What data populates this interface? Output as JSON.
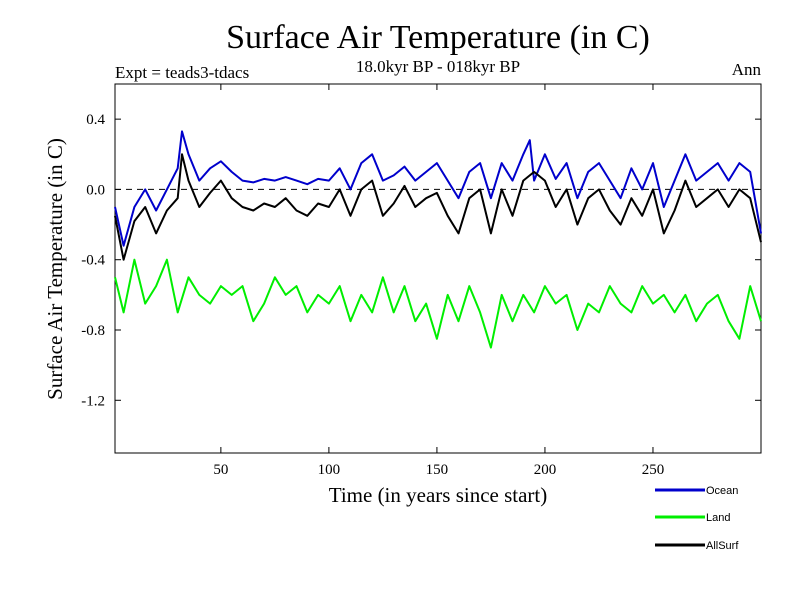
{
  "chart_data": {
    "type": "line",
    "title": "Surface Air Temperature (in C)",
    "subtitle": "18.0kyr BP - 018kyr BP",
    "experiment_label": "Expt = teads3-tdacs",
    "season_label": "Ann",
    "xlabel": "Time (in years since start)",
    "ylabel": "Surface Air Temperature (in C)",
    "xlim": [
      1,
      300
    ],
    "ylim": [
      -1.5,
      0.6
    ],
    "xticks": [
      50,
      100,
      150,
      200,
      250
    ],
    "xtick_labels": [
      "50",
      "100",
      "150",
      "200",
      "250"
    ],
    "yticks": [
      0.4,
      0.0,
      -0.4,
      -0.8,
      -1.2
    ],
    "ytick_labels": [
      "0.4",
      "0.0",
      "-0.4",
      "-0.8",
      "-1.2"
    ],
    "reference_line": 0.0,
    "series": [
      {
        "name": "Ocean",
        "color": "#0000cc",
        "x": [
          1,
          5,
          10,
          15,
          20,
          25,
          30,
          32,
          35,
          40,
          45,
          50,
          55,
          60,
          65,
          70,
          75,
          80,
          85,
          90,
          95,
          100,
          105,
          110,
          115,
          120,
          125,
          130,
          135,
          140,
          145,
          150,
          155,
          160,
          165,
          170,
          175,
          180,
          185,
          190,
          193,
          195,
          200,
          205,
          210,
          215,
          220,
          225,
          230,
          235,
          240,
          245,
          250,
          255,
          260,
          265,
          270,
          275,
          280,
          285,
          290,
          295,
          300
        ],
        "values": [
          -0.1,
          -0.32,
          -0.1,
          0.0,
          -0.12,
          0.0,
          0.12,
          0.33,
          0.2,
          0.05,
          0.12,
          0.16,
          0.1,
          0.05,
          0.04,
          0.06,
          0.05,
          0.07,
          0.05,
          0.03,
          0.06,
          0.05,
          0.12,
          0.0,
          0.15,
          0.2,
          0.05,
          0.08,
          0.13,
          0.05,
          0.1,
          0.15,
          0.05,
          -0.05,
          0.1,
          0.15,
          -0.05,
          0.15,
          0.05,
          0.2,
          0.28,
          0.05,
          0.2,
          0.06,
          0.15,
          -0.05,
          0.1,
          0.15,
          0.05,
          -0.05,
          0.12,
          0.0,
          0.15,
          -0.1,
          0.05,
          0.2,
          0.05,
          0.1,
          0.15,
          0.05,
          0.15,
          0.1,
          -0.25
        ]
      },
      {
        "name": "Land",
        "color": "#00ee00",
        "x": [
          1,
          5,
          10,
          15,
          20,
          25,
          30,
          35,
          40,
          45,
          50,
          55,
          60,
          65,
          70,
          75,
          80,
          85,
          90,
          95,
          100,
          105,
          110,
          115,
          120,
          125,
          130,
          135,
          140,
          145,
          150,
          155,
          160,
          165,
          170,
          175,
          180,
          185,
          190,
          195,
          200,
          205,
          210,
          215,
          220,
          225,
          230,
          235,
          240,
          245,
          250,
          255,
          260,
          265,
          270,
          275,
          280,
          285,
          290,
          295,
          300
        ],
        "values": [
          -0.5,
          -0.7,
          -0.4,
          -0.65,
          -0.55,
          -0.4,
          -0.7,
          -0.5,
          -0.6,
          -0.65,
          -0.55,
          -0.6,
          -0.55,
          -0.75,
          -0.65,
          -0.5,
          -0.6,
          -0.55,
          -0.7,
          -0.6,
          -0.65,
          -0.55,
          -0.75,
          -0.6,
          -0.7,
          -0.5,
          -0.7,
          -0.55,
          -0.75,
          -0.65,
          -0.85,
          -0.6,
          -0.75,
          -0.55,
          -0.7,
          -0.9,
          -0.6,
          -0.75,
          -0.6,
          -0.7,
          -0.55,
          -0.65,
          -0.6,
          -0.8,
          -0.65,
          -0.7,
          -0.55,
          -0.65,
          -0.7,
          -0.55,
          -0.65,
          -0.6,
          -0.7,
          -0.6,
          -0.75,
          -0.65,
          -0.6,
          -0.75,
          -0.85,
          -0.55,
          -0.75
        ]
      },
      {
        "name": "AllSurf",
        "color": "#000000",
        "x": [
          1,
          5,
          10,
          15,
          20,
          25,
          30,
          32,
          35,
          40,
          45,
          50,
          55,
          60,
          65,
          70,
          75,
          80,
          85,
          90,
          95,
          100,
          105,
          110,
          115,
          120,
          125,
          130,
          135,
          140,
          145,
          150,
          155,
          160,
          165,
          170,
          175,
          180,
          185,
          190,
          195,
          200,
          205,
          210,
          215,
          220,
          225,
          230,
          235,
          240,
          245,
          250,
          255,
          260,
          265,
          270,
          275,
          280,
          285,
          290,
          295,
          300
        ],
        "values": [
          -0.15,
          -0.4,
          -0.18,
          -0.1,
          -0.25,
          -0.12,
          -0.05,
          0.2,
          0.05,
          -0.1,
          -0.02,
          0.05,
          -0.05,
          -0.1,
          -0.12,
          -0.08,
          -0.1,
          -0.05,
          -0.12,
          -0.15,
          -0.08,
          -0.1,
          0.0,
          -0.15,
          0.0,
          0.05,
          -0.15,
          -0.08,
          0.02,
          -0.1,
          -0.05,
          -0.02,
          -0.15,
          -0.25,
          -0.05,
          0.0,
          -0.25,
          0.0,
          -0.15,
          0.05,
          0.1,
          0.05,
          -0.1,
          0.0,
          -0.2,
          -0.05,
          0.0,
          -0.12,
          -0.2,
          -0.05,
          -0.15,
          0.0,
          -0.25,
          -0.12,
          0.05,
          -0.1,
          -0.05,
          0.0,
          -0.1,
          0.0,
          -0.05,
          -0.3
        ]
      }
    ],
    "legend": [
      {
        "label": "Ocean",
        "color": "#0000cc"
      },
      {
        "label": "Land",
        "color": "#00ee00"
      },
      {
        "label": "AllSurf",
        "color": "#000000"
      }
    ]
  }
}
